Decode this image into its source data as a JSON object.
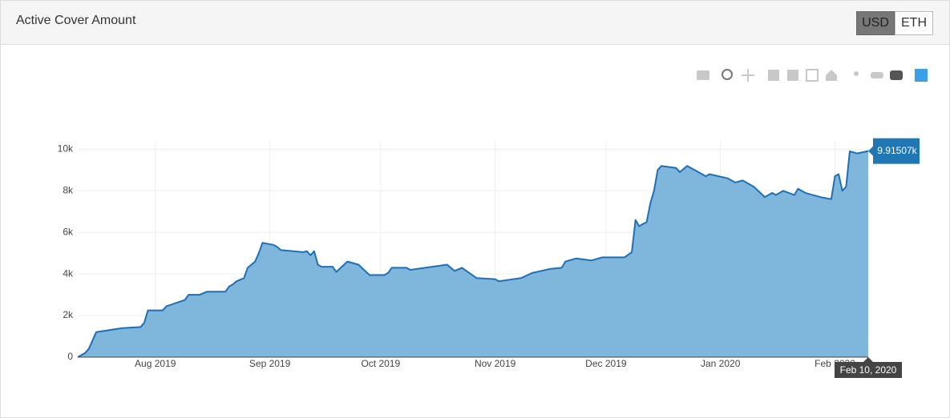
{
  "header": {
    "title": "Active Cover Amount",
    "buttons": [
      "USD",
      "ETH"
    ]
  },
  "chart_data": {
    "type": "area",
    "x": [
      "2019-07-11",
      "2019-07-13",
      "2019-07-14",
      "2019-07-15",
      "2019-07-16",
      "2019-07-23",
      "2019-07-28",
      "2019-07-29",
      "2019-07-30",
      "2019-08-03",
      "2019-08-04",
      "2019-08-09",
      "2019-08-10",
      "2019-08-13",
      "2019-08-15",
      "2019-08-20",
      "2019-08-21",
      "2019-08-22",
      "2019-08-23",
      "2019-08-25",
      "2019-08-26",
      "2019-08-28",
      "2019-08-29",
      "2019-08-30",
      "2019-09-02",
      "2019-09-03",
      "2019-09-04",
      "2019-09-10",
      "2019-09-11",
      "2019-09-12",
      "2019-09-13",
      "2019-09-14",
      "2019-09-15",
      "2019-09-18",
      "2019-09-19",
      "2019-09-22",
      "2019-09-25",
      "2019-09-28",
      "2019-10-02",
      "2019-10-03",
      "2019-10-04",
      "2019-10-08",
      "2019-10-09",
      "2019-10-19",
      "2019-10-21",
      "2019-10-23",
      "2019-10-27",
      "2019-11-01",
      "2019-11-02",
      "2019-11-04",
      "2019-11-08",
      "2019-11-11",
      "2019-11-16",
      "2019-11-19",
      "2019-11-20",
      "2019-11-23",
      "2019-11-27",
      "2019-11-30",
      "2019-12-06",
      "2019-12-08",
      "2019-12-09",
      "2019-12-10",
      "2019-12-12",
      "2019-12-13",
      "2019-12-14",
      "2019-12-15",
      "2019-12-16",
      "2019-12-20",
      "2019-12-21",
      "2019-12-23",
      "2019-12-26",
      "2019-12-28",
      "2019-12-29",
      "2020-01-03",
      "2020-01-05",
      "2020-01-07",
      "2020-01-10",
      "2020-01-13",
      "2020-01-15",
      "2020-01-16",
      "2020-01-18",
      "2020-01-21",
      "2020-01-22",
      "2020-01-24",
      "2020-01-28",
      "2020-01-31",
      "2020-02-01",
      "2020-02-02",
      "2020-02-03",
      "2020-02-04",
      "2020-02-05",
      "2020-02-07",
      "2020-02-10"
    ],
    "values": [
      0,
      200,
      400,
      800,
      1200,
      1400,
      1450,
      1650,
      2250,
      2250,
      2450,
      2750,
      3000,
      3000,
      3150,
      3150,
      3400,
      3500,
      3650,
      3800,
      4300,
      4600,
      5000,
      5500,
      5400,
      5300,
      5150,
      5050,
      5100,
      4900,
      5100,
      4450,
      4350,
      4350,
      4100,
      4600,
      4450,
      3950,
      3950,
      4050,
      4300,
      4300,
      4200,
      4450,
      4150,
      4300,
      3800,
      3750,
      3650,
      3700,
      3800,
      4050,
      4250,
      4300,
      4600,
      4750,
      4650,
      4800,
      4800,
      5050,
      6600,
      6300,
      6500,
      7400,
      8000,
      9000,
      9200,
      9100,
      8900,
      9200,
      8900,
      8700,
      8800,
      8600,
      8400,
      8500,
      8200,
      7700,
      7900,
      7800,
      8000,
      7800,
      8100,
      7900,
      7700,
      7600,
      8700,
      8800,
      8000,
      8200,
      9900,
      9800,
      9915.07
    ],
    "color": "#1f6fb5",
    "fill": "#7eb6dc",
    "xlim": [
      "2019-07-11",
      "2020-02-10"
    ],
    "xticks": [
      {
        "value": "2019-08-01",
        "label": "Aug 2019"
      },
      {
        "value": "2019-09-01",
        "label": "Sep 2019"
      },
      {
        "value": "2019-10-01",
        "label": "Oct 2019"
      },
      {
        "value": "2019-11-01",
        "label": "Nov 2019"
      },
      {
        "value": "2019-12-01",
        "label": "Dec 2019"
      },
      {
        "value": "2020-01-01",
        "label": "Jan 2020"
      },
      {
        "value": "2020-02-01",
        "label": "Feb 2020"
      }
    ],
    "ylim": [
      0,
      10400
    ],
    "yticks": [
      0,
      {
        "value": 2000,
        "label": "2k"
      },
      {
        "value": 4000,
        "label": "4k"
      },
      {
        "value": 6000,
        "label": "6k"
      },
      {
        "value": 8000,
        "label": "8k"
      },
      {
        "value": 10000,
        "label": "10k"
      }
    ],
    "grid": true,
    "hover": {
      "x": "2020-02-10",
      "x_label": "Feb 10, 2020",
      "value": 9915.07,
      "value_label": "9.91507k"
    }
  }
}
